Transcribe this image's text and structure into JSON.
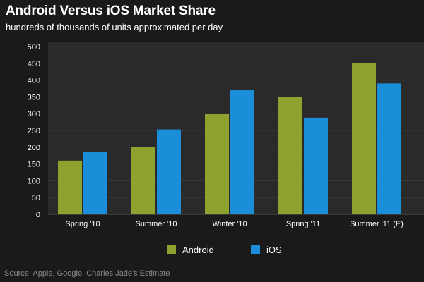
{
  "title": "Android Versus iOS Market Share",
  "subtitle": "hundreds of thousands of units approximated per day",
  "source": "Source: Apple, Google, Charles Jade's Estimate",
  "colors": {
    "background": "#1a1a1a",
    "plot_background": "#2a2a2a",
    "grid": "#3a3a3a",
    "android": "#8ea32f",
    "ios": "#1a8ed8"
  },
  "chart_data": {
    "type": "bar",
    "title": "Android Versus iOS Market Share",
    "subtitle": "hundreds of thousands of units approximated per day",
    "categories": [
      "Spring '10",
      "Summer '10",
      "Winter '10",
      "Spring '11",
      "Summer '11 (E)"
    ],
    "series": [
      {
        "name": "Android",
        "values": [
          160,
          200,
          300,
          350,
          450
        ],
        "color": "#8ea32f"
      },
      {
        "name": "iOS",
        "values": [
          185,
          253,
          370,
          288,
          390
        ],
        "color": "#1a8ed8"
      }
    ],
    "ylim": [
      0,
      500
    ],
    "yticks": [
      0,
      50,
      100,
      150,
      200,
      250,
      300,
      350,
      400,
      450,
      500
    ],
    "grid": true,
    "legend": "bottom-center"
  }
}
